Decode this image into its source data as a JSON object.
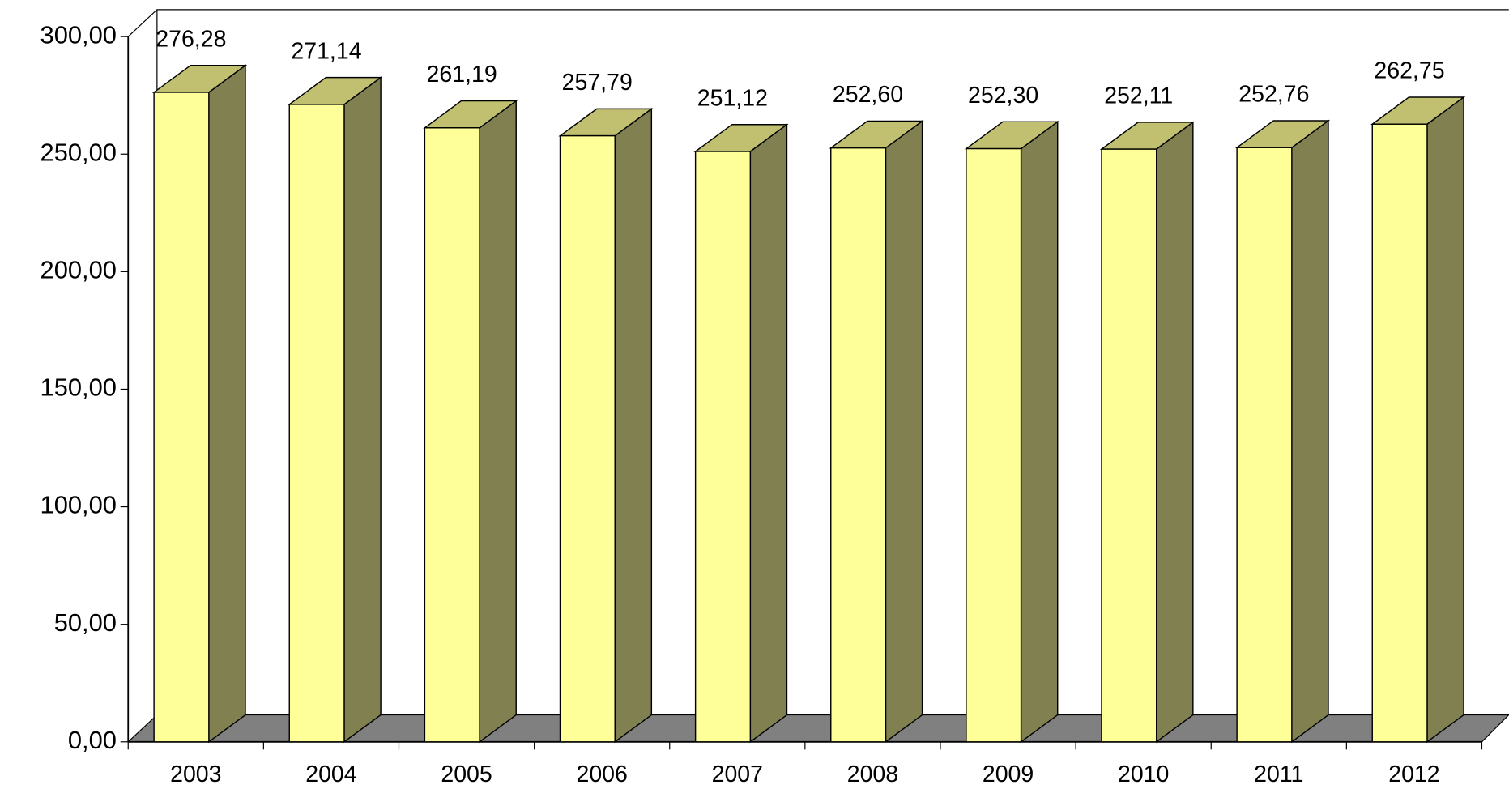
{
  "chart_data": {
    "type": "bar3d",
    "categories": [
      "2003",
      "2004",
      "2005",
      "2006",
      "2007",
      "2008",
      "2009",
      "2010",
      "2011",
      "2012"
    ],
    "values": [
      276.28,
      271.14,
      261.19,
      257.79,
      251.12,
      252.6,
      252.3,
      252.11,
      252.76,
      262.75
    ],
    "value_labels": [
      "276,28",
      "271,14",
      "261,19",
      "257,79",
      "251,12",
      "252,60",
      "252,30",
      "252,11",
      "252,76",
      "262,75"
    ],
    "color": "#ffff99",
    "ylim": [
      0,
      300
    ],
    "yticks": [
      {
        "value": 0,
        "label": "0,00"
      },
      {
        "value": 50,
        "label": "50,00"
      },
      {
        "value": 100,
        "label": "100,00"
      },
      {
        "value": 150,
        "label": "150,00"
      },
      {
        "value": 200,
        "label": "200,00"
      },
      {
        "value": 250,
        "label": "250,00"
      },
      {
        "value": 300,
        "label": "300,00"
      }
    ]
  }
}
